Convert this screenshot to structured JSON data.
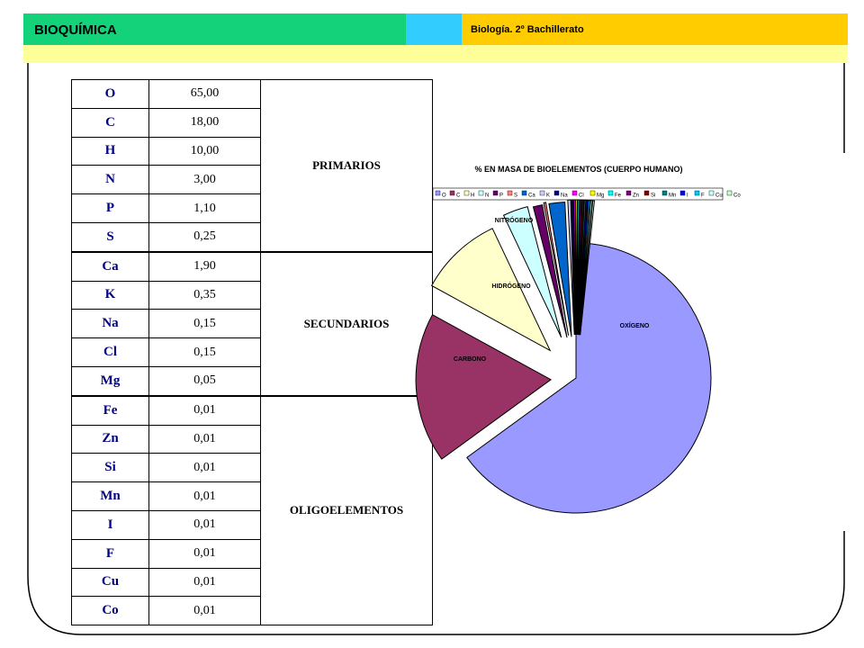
{
  "header": {
    "title": "BIOQUÍMICA",
    "subtitle": "Biología. 2º Bachillerato"
  },
  "table": {
    "rows": [
      {
        "symbol": "O",
        "value": "65,00"
      },
      {
        "symbol": "C",
        "value": "18,00"
      },
      {
        "symbol": "H",
        "value": "10,00"
      },
      {
        "symbol": "N",
        "value": "3,00"
      },
      {
        "symbol": "P",
        "value": "1,10"
      },
      {
        "symbol": "S",
        "value": "0,25"
      },
      {
        "symbol": "Ca",
        "value": "1,90"
      },
      {
        "symbol": "K",
        "value": "0,35"
      },
      {
        "symbol": "Na",
        "value": "0,15"
      },
      {
        "symbol": "Cl",
        "value": "0,15"
      },
      {
        "symbol": "Mg",
        "value": "0,05"
      },
      {
        "symbol": "Fe",
        "value": "0,01"
      },
      {
        "symbol": "Zn",
        "value": "0,01"
      },
      {
        "symbol": "Si",
        "value": "0,01"
      },
      {
        "symbol": "Mn",
        "value": "0,01"
      },
      {
        "symbol": "I",
        "value": "0,01"
      },
      {
        "symbol": "F",
        "value": "0,01"
      },
      {
        "symbol": "Cu",
        "value": "0,01"
      },
      {
        "symbol": "Co",
        "value": "0,01"
      }
    ],
    "groups": {
      "primary": "PRIMARIOS",
      "secondary": "SECUNDARIOS",
      "trace": "OLIGOELEMENTOS"
    }
  },
  "chart_data": {
    "type": "pie",
    "title": "% EN MASA DE BIOELEMENTOS (CUERPO HUMANO)",
    "legend_position": "top",
    "categories": [
      "O",
      "C",
      "H",
      "N",
      "P",
      "S",
      "Ca",
      "K",
      "Na",
      "Cl",
      "Mg",
      "Fe",
      "Zn",
      "Si",
      "Mn",
      "I",
      "F",
      "Cu",
      "Co"
    ],
    "values": [
      65,
      18,
      10,
      3,
      1.1,
      0.25,
      1.9,
      0.35,
      0.15,
      0.15,
      0.05,
      0.01,
      0.01,
      0.01,
      0.01,
      0.01,
      0.01,
      0.01,
      0.01
    ],
    "colors": [
      "#9999ff",
      "#993366",
      "#ffffcc",
      "#ccffff",
      "#660066",
      "#ff8080",
      "#0066cc",
      "#ccccff",
      "#000080",
      "#ff00ff",
      "#ffff00",
      "#00ffff",
      "#800080",
      "#800000",
      "#008080",
      "#0000ff",
      "#00ccff",
      "#ccffff",
      "#ccffcc"
    ],
    "slice_labels": {
      "O": "OXÍGENO",
      "C": "CARBONO",
      "H": "HIDRÓGENO",
      "N": "NITRÓGENO"
    }
  }
}
